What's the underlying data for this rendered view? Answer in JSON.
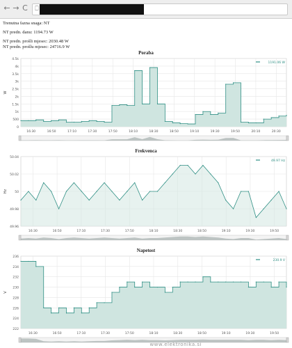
{
  "browser": {
    "back_glyph": "←",
    "forward_glyph": "→",
    "reload_glyph": "C",
    "page_glyph": "⎕"
  },
  "info": {
    "line1": "Trenutna fazna snaga: NT",
    "line2": "NT predn. danu: 1194.73 W",
    "line3": "NT predn. prošli mjesec: 2030.48 W",
    "line4": "NT predn. prošlu mjesec: 24716.9 W"
  },
  "watermark": "www.elektronika.si",
  "colors": {
    "line": "#2f8f84",
    "fill": "#cfe5e0",
    "grid": "#e6e6e6",
    "nav": "#c8c8c8"
  },
  "chart_data": [
    {
      "type": "area",
      "title": "Poraba",
      "ylabel": "W",
      "legend": "1191.06 W",
      "x": [
        "16:30",
        "16:40",
        "16:50",
        "17:00",
        "17:10",
        "17:20",
        "17:30",
        "17:40",
        "17:50",
        "18:00",
        "18:10",
        "18:20",
        "18:30",
        "18:40",
        "18:50",
        "19:00",
        "19:10",
        "19:20",
        "19:30",
        "19:40",
        "19:50",
        "20:00",
        "20:10",
        "20:20",
        "20:30",
        "20:40",
        "20:50",
        "21:00",
        "21:10",
        "21:20",
        "21:30",
        "21:40",
        "21:50",
        "22:00",
        "22:10",
        "22:20"
      ],
      "values": [
        400,
        400,
        450,
        350,
        400,
        450,
        300,
        300,
        350,
        400,
        350,
        300,
        1400,
        1450,
        1400,
        3700,
        1500,
        3900,
        1500,
        350,
        250,
        200,
        180,
        800,
        1000,
        800,
        900,
        2800,
        2900,
        300,
        250,
        250,
        500,
        600,
        700,
        750
      ],
      "ylim": [
        0,
        4500
      ],
      "yticks": [
        "0",
        "500",
        "1k",
        "1.5k",
        "2k",
        "2.5k",
        "3k",
        "3.5k",
        "4k",
        "4.5k"
      ],
      "xticks": [
        "16:30",
        "16:50",
        "17:10",
        "17:30",
        "17:50",
        "18:10",
        "18:30",
        "18:50",
        "19:10",
        "19:30",
        "19:50",
        "20:10",
        "20:30"
      ]
    },
    {
      "type": "line",
      "title": "Frekvenca",
      "ylabel": "Hz",
      "legend": "49.97 Hz",
      "x": [
        "16:30",
        "16:40",
        "16:50",
        "17:00",
        "17:10",
        "17:20",
        "17:30",
        "17:40",
        "17:50",
        "18:00",
        "18:10",
        "18:20",
        "18:30",
        "18:40",
        "18:50",
        "19:00",
        "19:10",
        "19:20",
        "19:30",
        "19:40",
        "19:50",
        "20:00",
        "20:10",
        "20:20",
        "20:30",
        "20:40",
        "20:50",
        "21:00",
        "21:10",
        "21:20",
        "21:30",
        "21:40",
        "21:50",
        "22:00",
        "22:10",
        "22:20"
      ],
      "values": [
        49.99,
        50.0,
        49.99,
        50.01,
        50.0,
        49.98,
        50.0,
        50.01,
        50.0,
        49.99,
        50.0,
        50.01,
        50.0,
        49.99,
        50.0,
        50.01,
        49.99,
        50.0,
        50.0,
        50.01,
        50.02,
        50.03,
        50.03,
        50.02,
        50.03,
        50.02,
        50.01,
        49.99,
        49.98,
        50.0,
        50.0,
        49.97,
        49.98,
        49.99,
        50.0,
        49.98
      ],
      "ylim": [
        49.96,
        50.04
      ],
      "yticks": [
        "49.96",
        "49.98",
        "50",
        "50.02",
        "50.04"
      ],
      "xticks": [
        "16:30",
        "16:50",
        "17:10",
        "17:30",
        "17:50",
        "18:10",
        "18:30",
        "18:50",
        "19:10",
        "19:30",
        "19:50"
      ]
    },
    {
      "type": "area",
      "title": "Napetost",
      "ylabel": "V",
      "legend": "230.9 V",
      "x": [
        "16:30",
        "16:40",
        "16:50",
        "17:00",
        "17:10",
        "17:20",
        "17:30",
        "17:40",
        "17:50",
        "18:00",
        "18:10",
        "18:20",
        "18:30",
        "18:40",
        "18:50",
        "19:00",
        "19:10",
        "19:20",
        "19:30",
        "19:40",
        "19:50",
        "20:00",
        "20:10",
        "20:20",
        "20:30",
        "20:40",
        "20:50",
        "21:00",
        "21:10",
        "21:20",
        "21:30",
        "21:40",
        "21:50",
        "22:00",
        "22:10",
        "22:20"
      ],
      "values": [
        235,
        235,
        234,
        226,
        225,
        226,
        225,
        226,
        225,
        226,
        227,
        227,
        229,
        230,
        231,
        230,
        231,
        230,
        230,
        229,
        230,
        231,
        231,
        231,
        232,
        231,
        231,
        231,
        231,
        231,
        230,
        231,
        231,
        230,
        231,
        230
      ],
      "ylim": [
        222,
        236
      ],
      "yticks": [
        "222",
        "224",
        "226",
        "228",
        "230",
        "232",
        "234",
        "236"
      ],
      "xticks": [
        "16:30",
        "16:50",
        "17:10",
        "17:30",
        "17:50",
        "18:10",
        "18:30",
        "18:50",
        "19:10",
        "19:30",
        "19:50"
      ]
    }
  ]
}
